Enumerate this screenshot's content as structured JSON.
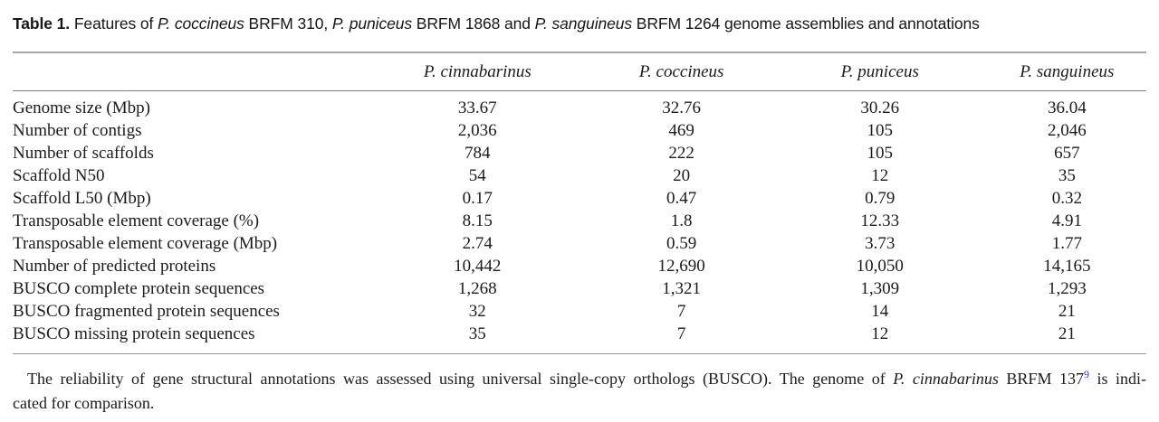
{
  "title": {
    "segments": [
      {
        "text": "Table 1.",
        "bold": true
      },
      {
        "text": " Features of "
      },
      {
        "text": "P. coccineus",
        "italic": true
      },
      {
        "text": " BRFM 310, "
      },
      {
        "text": "P. puniceus",
        "italic": true
      },
      {
        "text": " BRFM 1868 and "
      },
      {
        "text": "P. sanguineus",
        "italic": true
      },
      {
        "text": " BRFM 1264 genome assemblies and annotations"
      }
    ]
  },
  "table": {
    "columns": [
      "P. cinnabarinus",
      "P. coccineus",
      "P. puniceus",
      "P. sanguineus"
    ],
    "rows": [
      {
        "label": "Genome size (Mbp)",
        "values": [
          "33.67",
          "32.76",
          "30.26",
          "36.04"
        ]
      },
      {
        "label": "Number of contigs",
        "values": [
          "2,036",
          "469",
          "105",
          "2,046"
        ]
      },
      {
        "label": "Number of scaffolds",
        "values": [
          "784",
          "222",
          "105",
          "657"
        ]
      },
      {
        "label": "Scaffold N50",
        "values": [
          "54",
          "20",
          "12",
          "35"
        ]
      },
      {
        "label": "Scaffold L50 (Mbp)",
        "values": [
          "0.17",
          "0.47",
          "0.79",
          "0.32"
        ]
      },
      {
        "label": "Transposable element coverage (%)",
        "values": [
          "8.15",
          "1.8",
          "12.33",
          "4.91"
        ]
      },
      {
        "label": "Transposable element coverage (Mbp)",
        "values": [
          "2.74",
          "0.59",
          "3.73",
          "1.77"
        ]
      },
      {
        "label": "Number of predicted proteins",
        "values": [
          "10,442",
          "12,690",
          "10,050",
          "14,165"
        ]
      },
      {
        "label": "BUSCO complete protein sequences",
        "values": [
          "1,268",
          "1,321",
          "1,309",
          "1,293"
        ]
      },
      {
        "label": "BUSCO fragmented protein sequences",
        "values": [
          "32",
          "7",
          "14",
          "21"
        ]
      },
      {
        "label": "BUSCO missing protein sequences",
        "values": [
          "35",
          "7",
          "12",
          "21"
        ]
      }
    ]
  },
  "footnote": {
    "line1_segments": [
      {
        "text": "The reliability of gene structural annotations was assessed using universal single-copy orthologs (BUSCO). The genome of "
      },
      {
        "text": "P. cinnabarinus",
        "italic": true
      },
      {
        "text": " BRFM 137"
      },
      {
        "text": "9",
        "sup": true,
        "link": true
      },
      {
        "text": " is indi-"
      }
    ],
    "line2": "cated for comparison."
  },
  "colors": {
    "text": "#1b1b1b",
    "rule_top": "#a6a6a6",
    "rule_header": "#7d7d7d",
    "rule_bottom": "#969696",
    "citation_link": "#3232cd"
  }
}
